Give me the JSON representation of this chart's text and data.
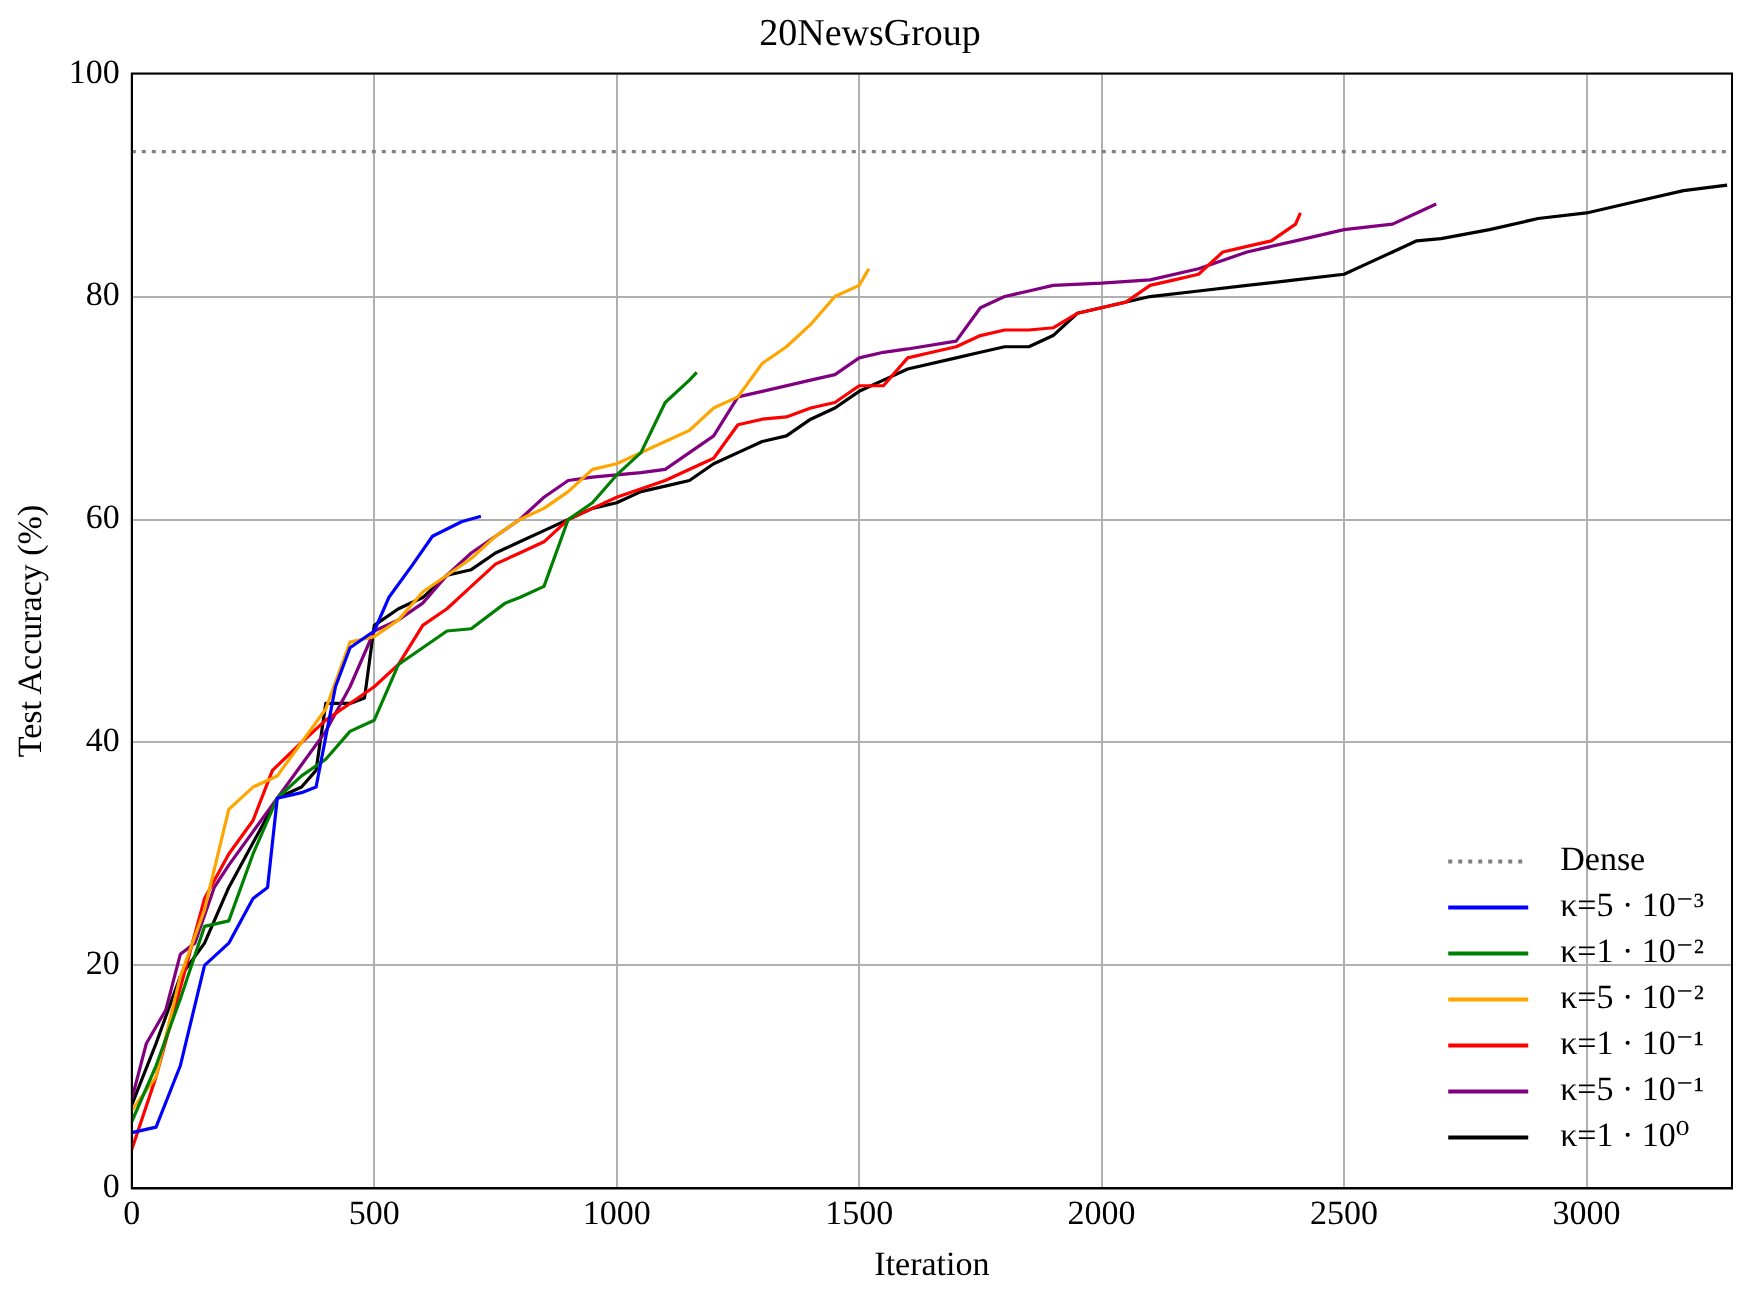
{
  "chart_data": {
    "type": "line",
    "title": "20NewsGroup",
    "xlabel": "Iteration",
    "ylabel": "Test Accuracy (%)",
    "xlim": [
      0,
      3300
    ],
    "xticks": [
      0,
      500,
      1000,
      1500,
      2000,
      2500,
      3000
    ],
    "ylim": [
      0,
      100
    ],
    "yticks": [
      0,
      20,
      40,
      60,
      80,
      100
    ],
    "grid": true,
    "legend": "bottom right",
    "marker": "none",
    "line_style": "solid",
    "ref_lines": [
      {
        "axis": "y",
        "value": 93,
        "label": "Dense",
        "color": "#808080",
        "line_style": "dotted"
      }
    ],
    "series": [
      {
        "name": "κ=5 · 10⁻³",
        "color": "#0000ff",
        "x": [
          0,
          50,
          100,
          150,
          200,
          250,
          280,
          300,
          350,
          380,
          420,
          450,
          500,
          530,
          580,
          620,
          680,
          720
        ],
        "values": [
          5,
          5.5,
          11,
          20,
          22,
          26,
          27,
          35,
          35.5,
          36,
          45,
          48.5,
          50,
          53,
          56,
          58.5,
          59.8,
          60.3
        ]
      },
      {
        "name": "κ=1 · 10⁻²",
        "color": "#008000",
        "x": [
          0,
          50,
          100,
          150,
          200,
          250,
          300,
          350,
          400,
          450,
          500,
          550,
          600,
          650,
          700,
          770,
          800,
          850,
          900,
          950,
          1000,
          1050,
          1100,
          1150,
          1165
        ],
        "values": [
          6,
          11,
          17,
          23.5,
          24,
          30,
          35,
          37,
          38.5,
          41,
          42,
          47,
          48.5,
          50,
          50.2,
          52.5,
          53,
          54,
          60,
          61.5,
          64,
          66,
          70.5,
          72.5,
          73.2
        ]
      },
      {
        "name": "κ=5 · 10⁻²",
        "color": "#ffa500",
        "x": [
          0,
          50,
          100,
          150,
          200,
          250,
          300,
          350,
          400,
          450,
          500,
          550,
          600,
          650,
          700,
          750,
          800,
          850,
          900,
          950,
          1000,
          1050,
          1100,
          1150,
          1200,
          1250,
          1300,
          1350,
          1400,
          1450,
          1500,
          1520
        ],
        "values": [
          7,
          10,
          19,
          25,
          34,
          36,
          37,
          40,
          43,
          49,
          49.5,
          51,
          53.5,
          55,
          56.5,
          58.5,
          60,
          61,
          62.5,
          64.5,
          65,
          66,
          67,
          68,
          70,
          71,
          74,
          75.5,
          77.5,
          80,
          81,
          82.5
        ]
      },
      {
        "name": "κ=1 · 10⁻¹",
        "color": "#ff0000",
        "x": [
          0,
          50,
          100,
          150,
          200,
          250,
          290,
          350,
          400,
          450,
          500,
          550,
          600,
          650,
          700,
          750,
          800,
          850,
          900,
          950,
          1000,
          1100,
          1200,
          1250,
          1300,
          1350,
          1400,
          1450,
          1500,
          1550,
          1600,
          1650,
          1700,
          1750,
          1800,
          1850,
          1900,
          1950,
          2000,
          2050,
          2100,
          2150,
          2200,
          2250,
          2300,
          2350,
          2400,
          2410
        ],
        "values": [
          3.5,
          10,
          18,
          26,
          30,
          33,
          37.5,
          40,
          42,
          43.5,
          45,
          47,
          50.5,
          52,
          54,
          56,
          57,
          58,
          60,
          61,
          62,
          63.5,
          65.5,
          68.5,
          69,
          69.2,
          70,
          70.5,
          72,
          72,
          74.5,
          75,
          75.5,
          76.5,
          77,
          77,
          77.2,
          78.5,
          79,
          79.5,
          81,
          81.5,
          82,
          84,
          84.5,
          85,
          86.5,
          87.5
        ]
      },
      {
        "name": "κ=5 · 10⁻¹",
        "color": "#800080",
        "x": [
          0,
          30,
          70,
          100,
          130,
          170,
          200,
          250,
          300,
          350,
          400,
          450,
          500,
          550,
          600,
          650,
          700,
          750,
          800,
          850,
          900,
          950,
          1000,
          1050,
          1100,
          1150,
          1200,
          1250,
          1300,
          1400,
          1450,
          1500,
          1550,
          1600,
          1700,
          1750,
          1800,
          1850,
          1900,
          2000,
          2100,
          2200,
          2300,
          2400,
          2500,
          2600,
          2650,
          2690
        ],
        "values": [
          8,
          13,
          16,
          21,
          22,
          27,
          29,
          32,
          35,
          38,
          41,
          45,
          50,
          51,
          52.5,
          55,
          57,
          58.5,
          60,
          62,
          63.5,
          63.8,
          64,
          64.2,
          64.5,
          66,
          67.5,
          71,
          71.5,
          72.5,
          73,
          74.5,
          75,
          75.3,
          76,
          79,
          80,
          80.5,
          81,
          81.2,
          81.5,
          82.5,
          84,
          85,
          86,
          86.5,
          87.5,
          88.3
        ]
      },
      {
        "name": "κ=1 · 10⁰",
        "color": "#000000",
        "x": [
          0,
          50,
          100,
          150,
          200,
          250,
          300,
          350,
          380,
          400,
          450,
          480,
          500,
          550,
          600,
          650,
          700,
          750,
          800,
          850,
          900,
          950,
          1000,
          1050,
          1100,
          1150,
          1200,
          1250,
          1300,
          1350,
          1400,
          1450,
          1500,
          1550,
          1600,
          1700,
          1750,
          1800,
          1850,
          1900,
          1950,
          2100,
          2200,
          2300,
          2400,
          2500,
          2550,
          2600,
          2650,
          2700,
          2800,
          2900,
          3000,
          3100,
          3200,
          3290
        ],
        "values": [
          7.5,
          13,
          19,
          22,
          27,
          31,
          35,
          36,
          37.5,
          43.5,
          43.5,
          44,
          50.5,
          52,
          53,
          55,
          55.5,
          57,
          58,
          59,
          60,
          61,
          61.5,
          62.5,
          63,
          63.5,
          65,
          66,
          67,
          67.5,
          69,
          70,
          71.5,
          72.5,
          73.5,
          74.5,
          75,
          75.5,
          75.5,
          76.5,
          78.5,
          80,
          80.5,
          81,
          81.5,
          82,
          83,
          84,
          85,
          85.2,
          86,
          87,
          87.5,
          88.5,
          89.5,
          90
        ]
      }
    ]
  }
}
